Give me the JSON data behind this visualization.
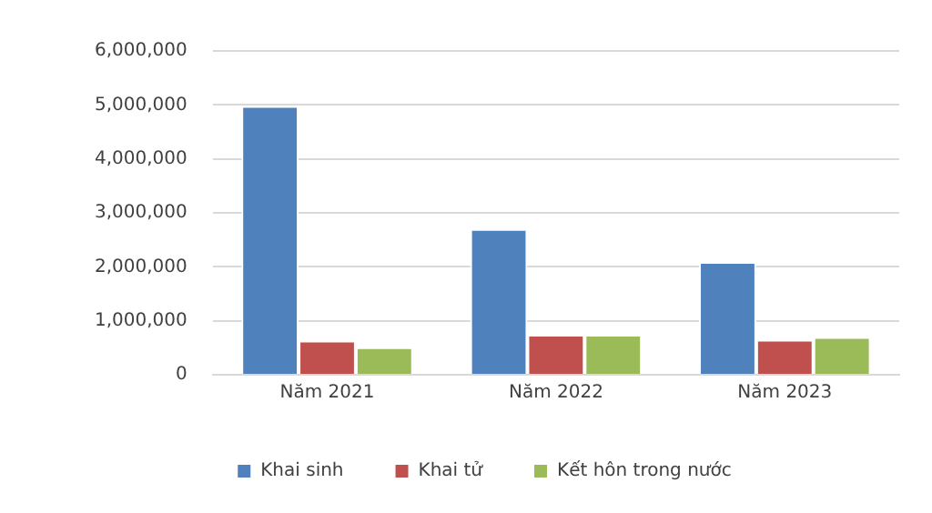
{
  "chart_data": {
    "type": "bar",
    "categories": [
      "Năm 2021",
      "Năm 2022",
      "Năm 2023"
    ],
    "series": [
      {
        "name": "Khai sinh",
        "color": "#4f81bd",
        "values": [
          4980000,
          2700000,
          2090000
        ]
      },
      {
        "name": "Khai tử",
        "color": "#c0504d",
        "values": [
          630000,
          740000,
          650000
        ]
      },
      {
        "name": "Kết hôn trong nước",
        "color": "#9bbb59",
        "values": [
          510000,
          740000,
          700000
        ]
      }
    ],
    "ylim": [
      0,
      6000000
    ],
    "yticks": [
      0,
      {
        "value": 1000000,
        "label": "1,000,000"
      },
      {
        "value": 2000000,
        "label": "2,000,000"
      },
      {
        "value": 3000000,
        "label": "3,000,000"
      },
      {
        "value": 4000000,
        "label": "4,000,000"
      },
      {
        "value": 5000000,
        "label": "5,000,000"
      },
      {
        "value": 6000000,
        "label": "6,000,000"
      }
    ],
    "grid": "y",
    "legend": "bottom"
  }
}
